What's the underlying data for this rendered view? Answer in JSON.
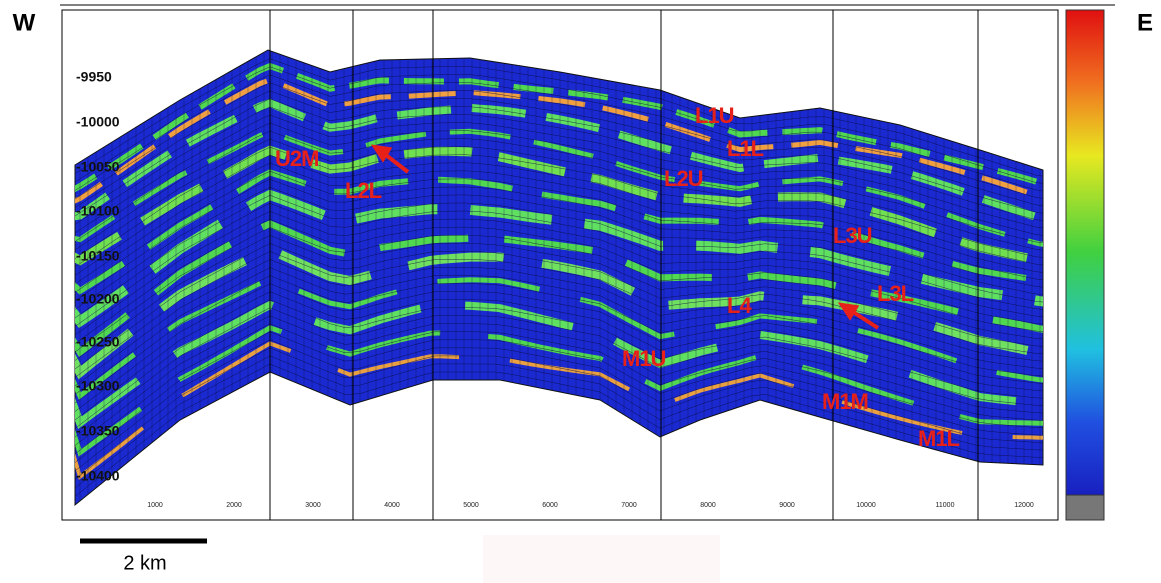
{
  "labels": {
    "west": "W",
    "east": "E"
  },
  "depth_labels": [
    "-9950",
    "-10000",
    "-10050",
    "-10100",
    "-10150",
    "-10200",
    "-10250",
    "-10300",
    "-10350",
    "-10400"
  ],
  "x_labels": [
    "1000",
    "2000",
    "3000",
    "4000",
    "5000",
    "6000",
    "7000",
    "8000",
    "9000",
    "10000",
    "11000",
    "12000"
  ],
  "zones": [
    {
      "label": "U2M"
    },
    {
      "label": "L2L"
    },
    {
      "label": "L1U"
    },
    {
      "label": "L1L"
    },
    {
      "label": "L2U"
    },
    {
      "label": "L3U"
    },
    {
      "label": "L3L"
    },
    {
      "label": "L4"
    },
    {
      "label": "M1U"
    },
    {
      "label": "M1M"
    },
    {
      "label": "M1L"
    }
  ],
  "scale_bar": "2 km"
}
